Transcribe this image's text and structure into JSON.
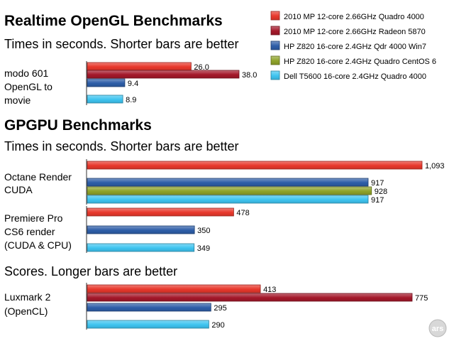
{
  "chart_data": {
    "type": "bar",
    "orientation": "horizontal",
    "legend": [
      {
        "name": "2010 MP 12-core 2.66GHz Quadro 4000",
        "color": "#e8382c"
      },
      {
        "name": "2010 MP 12-core 2.66GHz Radeon 5870",
        "color": "#a4182a"
      },
      {
        "name": "HP Z820 16-core 2.4GHz Qdr 4000 Win7",
        "color": "#2e5ea8"
      },
      {
        "name": "HP Z820 16-core 2.4GHz Quadro CentOS 6",
        "color": "#8fa32a"
      },
      {
        "name": "Dell T5600 16-core 2.4GHz Quadro 4000",
        "color": "#3ec4f0"
      }
    ],
    "legend_position": "top-right",
    "sections": [
      {
        "title": "Realtime OpenGL Benchmarks",
        "subtitle": "Times in seconds. Shorter bars are better",
        "groups": [
          {
            "label": [
              "modo 601",
              "OpenGL to",
              "movie"
            ],
            "bars": [
              {
                "series": 0,
                "value": 26.0,
                "label": "26.0"
              },
              {
                "series": 1,
                "value": 38.0,
                "label": "38.0"
              },
              {
                "series": 2,
                "value": 9.4,
                "label": "9.4"
              },
              {
                "series": 4,
                "value": 8.9,
                "label": "8.9"
              }
            ]
          }
        ]
      },
      {
        "title": "GPGPU Benchmarks",
        "subtitle": "Times in seconds. Shorter bars are better",
        "groups": [
          {
            "label": [
              "Octane Render",
              "CUDA"
            ],
            "bars": [
              {
                "series": 0,
                "value": 1093,
                "label": "1,093"
              },
              {
                "series": 2,
                "value": 917,
                "label": "917"
              },
              {
                "series": 3,
                "value": 928,
                "label": "928"
              },
              {
                "series": 4,
                "value": 917,
                "label": "917"
              }
            ]
          },
          {
            "label": [
              "Premiere Pro",
              "CS6 render",
              "(CUDA & CPU)"
            ],
            "bars": [
              {
                "series": 0,
                "value": 478,
                "label": "478"
              },
              {
                "series": 2,
                "value": 350,
                "label": "350"
              },
              {
                "series": 4,
                "value": 349,
                "label": "349"
              }
            ]
          }
        ]
      },
      {
        "title": "",
        "subtitle": "Scores. Longer bars are better",
        "groups": [
          {
            "label": [
              "Luxmark 2",
              "(OpenCL)"
            ],
            "bars": [
              {
                "series": 0,
                "value": 413,
                "label": "413"
              },
              {
                "series": 1,
                "value": 775,
                "label": "775"
              },
              {
                "series": 2,
                "value": 295,
                "label": "295"
              },
              {
                "series": 4,
                "value": 290,
                "label": "290"
              }
            ]
          }
        ]
      }
    ],
    "watermark": "ars"
  }
}
